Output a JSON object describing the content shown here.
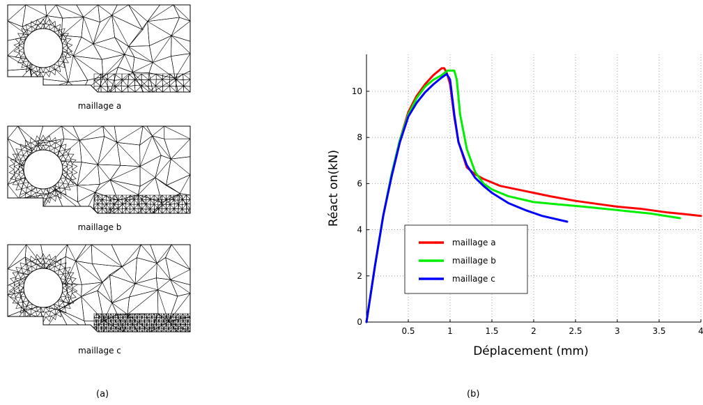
{
  "panel_a": {
    "label": "(a)",
    "captions": [
      "maillage a",
      "maillage b",
      "maillage c"
    ]
  },
  "panel_b": {
    "label": "(b)"
  },
  "chart_data": {
    "type": "line",
    "title": "",
    "xlabel": "Déplacement (mm)",
    "ylabel": "Réact on(kN)",
    "xlim": [
      0,
      4
    ],
    "ylim": [
      0,
      11.6
    ],
    "xticks": [
      0.5,
      1,
      1.5,
      2,
      2.5,
      3,
      3.5,
      4
    ],
    "xtick_labels": [
      "0.5",
      "1",
      "1.5",
      "2",
      "2.5",
      "3",
      "3.5",
      "4"
    ],
    "yticks": [
      0,
      2,
      4,
      6,
      8,
      10
    ],
    "ytick_labels": [
      "0",
      "2",
      "4",
      "6",
      "8",
      "10"
    ],
    "grid": true,
    "legend_position": "lower-left",
    "series": [
      {
        "name": "maillage a",
        "color": "#ff0000",
        "x": [
          0,
          0.1,
          0.2,
          0.3,
          0.4,
          0.5,
          0.6,
          0.7,
          0.8,
          0.9,
          0.93,
          0.96,
          1.0,
          1.05,
          1.1,
          1.2,
          1.3,
          1.4,
          1.6,
          1.8,
          2.0,
          2.2,
          2.5,
          2.8,
          3.0,
          3.3,
          3.6,
          3.8,
          4.0
        ],
        "y": [
          0,
          2.4,
          4.6,
          6.4,
          7.9,
          9.1,
          9.8,
          10.3,
          10.7,
          11.0,
          11.0,
          10.8,
          10.3,
          8.9,
          7.8,
          6.7,
          6.4,
          6.2,
          5.9,
          5.75,
          5.6,
          5.45,
          5.25,
          5.1,
          5.0,
          4.9,
          4.75,
          4.68,
          4.6
        ]
      },
      {
        "name": "maillage b",
        "color": "#00ee00",
        "x": [
          0,
          0.1,
          0.2,
          0.3,
          0.4,
          0.5,
          0.6,
          0.7,
          0.8,
          0.9,
          0.97,
          1.0,
          1.05,
          1.08,
          1.12,
          1.2,
          1.3,
          1.4,
          1.5,
          1.7,
          2.0,
          2.3,
          2.6,
          3.0,
          3.4,
          3.75
        ],
        "y": [
          0,
          2.4,
          4.6,
          6.4,
          7.9,
          9.0,
          9.7,
          10.2,
          10.5,
          10.7,
          10.9,
          10.9,
          10.9,
          10.5,
          9.0,
          7.5,
          6.5,
          6.0,
          5.75,
          5.45,
          5.2,
          5.1,
          5.0,
          4.85,
          4.7,
          4.5
        ]
      },
      {
        "name": "maillage c",
        "color": "#0000ff",
        "x": [
          0,
          0.1,
          0.2,
          0.3,
          0.4,
          0.5,
          0.6,
          0.7,
          0.8,
          0.9,
          0.96,
          1.0,
          1.05,
          1.1,
          1.2,
          1.3,
          1.4,
          1.5,
          1.7,
          1.9,
          2.1,
          2.4
        ],
        "y": [
          0,
          2.4,
          4.6,
          6.3,
          7.8,
          8.9,
          9.5,
          9.95,
          10.3,
          10.6,
          10.75,
          10.5,
          9.0,
          7.8,
          6.8,
          6.25,
          5.9,
          5.6,
          5.15,
          4.85,
          4.6,
          4.35
        ]
      }
    ]
  }
}
